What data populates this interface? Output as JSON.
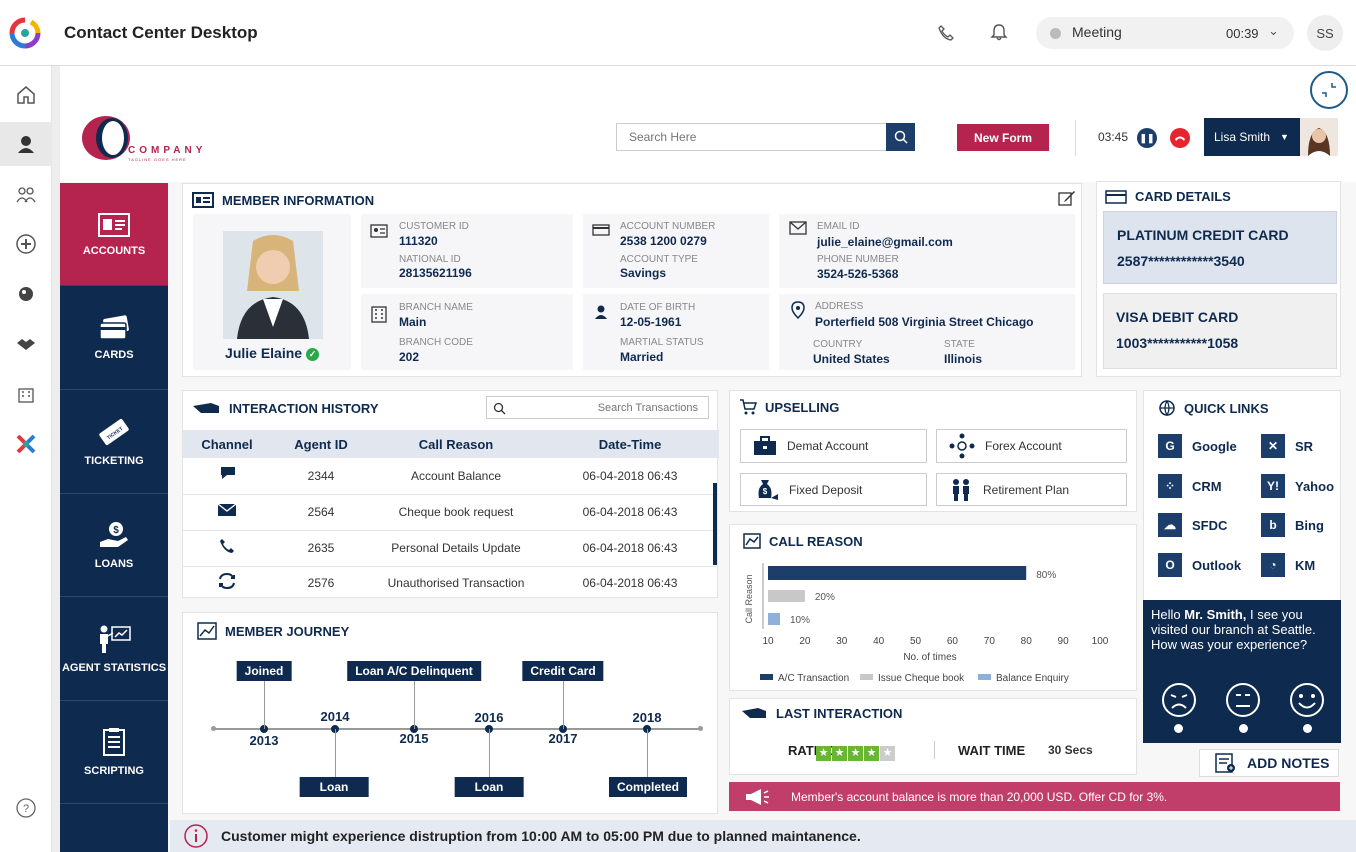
{
  "app": {
    "title": "Contact Center Desktop",
    "status": "Meeting",
    "timer": "00:39",
    "user_initials": "SS"
  },
  "company": {
    "name": "COMPANY",
    "tagline": "TAGLINE GOES HERE"
  },
  "toolbar": {
    "search_placeholder": "Search Here",
    "new_form": "New Form",
    "call_timer": "03:45",
    "agent_name": "Lisa Smith"
  },
  "nav": [
    {
      "label": "ACCOUNTS"
    },
    {
      "label": "CARDS"
    },
    {
      "label": "TICKETING"
    },
    {
      "label": "LOANS"
    },
    {
      "label": "AGENT STATISTICS"
    },
    {
      "label": "SCRIPTING"
    }
  ],
  "member": {
    "title": "MEMBER INFORMATION",
    "name": "Julie Elaine",
    "customer_id_label": "CUSTOMER ID",
    "customer_id": "111320",
    "national_id_label": "NATIONAL ID",
    "national_id": "28135621196",
    "account_number_label": "ACCOUNT NUMBER",
    "account_number": "2538 1200 0279",
    "account_type_label": "ACCOUNT TYPE",
    "account_type": "Savings",
    "email_label": "EMAIL ID",
    "email": "julie_elaine@gmail.com",
    "phone_label": "PHONE NUMBER",
    "phone": "3524-526-5368",
    "branch_name_label": "BRANCH NAME",
    "branch_name": "Main",
    "branch_code_label": "BRANCH CODE",
    "branch_code": "202",
    "dob_label": "DATE OF BIRTH",
    "dob": "12-05-1961",
    "marital_label": "MARTIAL STATUS",
    "marital": "Married",
    "address_label": "ADDRESS",
    "address": "Porterfield 508 Virginia Street Chicago",
    "country_label": "COUNTRY",
    "country": "United States",
    "state_label": "STATE",
    "state": "Illinois"
  },
  "cards": {
    "title": "CARD DETAILS",
    "items": [
      {
        "name": "PLATINUM CREDIT CARD",
        "number": "2587************3540"
      },
      {
        "name": "VISA DEBIT CARD",
        "number": "1003***********1058"
      }
    ]
  },
  "history": {
    "title": "INTERACTION HISTORY",
    "search_placeholder": "Search Transactions",
    "columns": [
      "Channel",
      "Agent ID",
      "Call Reason",
      "Date-Time"
    ],
    "rows": [
      {
        "channel_icon": "chat-icon",
        "agent": "2344",
        "reason": "Account Balance",
        "datetime": "06-04-2018 06:43"
      },
      {
        "channel_icon": "email-icon",
        "agent": "2564",
        "reason": "Cheque book request",
        "datetime": "06-04-2018 06:43"
      },
      {
        "channel_icon": "phone-icon",
        "agent": "2635",
        "reason": "Personal Details Update",
        "datetime": "06-04-2018 06:43"
      },
      {
        "channel_icon": "transfer-icon",
        "agent": "2576",
        "reason": "Unauthorised Transaction",
        "datetime": "06-04-2018 06:43"
      }
    ]
  },
  "upselling": {
    "title": "UPSELLING",
    "items": [
      "Demat Account",
      "Forex Account",
      "Fixed Deposit",
      "Retirement Plan"
    ]
  },
  "quick_links": {
    "title": "QUICK LINKS",
    "items": [
      "Google",
      "SR",
      "CRM",
      "Yahoo",
      "SFDC",
      "Bing",
      "Outlook",
      "KM"
    ]
  },
  "journey": {
    "title": "MEMBER JOURNEY",
    "years": [
      "2013",
      "2014",
      "2015",
      "2016",
      "2017",
      "2018"
    ],
    "top_events": [
      "Joined",
      "Loan A/C Delinquent",
      "Credit Card"
    ],
    "bottom_events": [
      "Loan",
      "Loan",
      "Completed"
    ]
  },
  "chart_data": {
    "type": "bar",
    "title": "CALL REASON",
    "ylabel": "Call Reason",
    "xlabel": "No. of times",
    "xlim": [
      10,
      100
    ],
    "xticks": [
      10,
      20,
      30,
      40,
      50,
      60,
      70,
      80,
      90,
      100
    ],
    "series": [
      {
        "name": "A/C Transaction",
        "value": 80,
        "label": "80%",
        "color": "#1d3d6b"
      },
      {
        "name": "Issue Cheque book",
        "value": 20,
        "label": "20%",
        "color": "#c8c8c8"
      },
      {
        "name": "Balance Enquiry",
        "value": 10,
        "label": "10%",
        "color": "#8fb0d8"
      }
    ]
  },
  "last_interaction": {
    "title": "LAST INTERACTION",
    "rating_label": "RATING",
    "rating": 4,
    "rating_max": 5,
    "wait_label": "WAIT TIME",
    "wait_value": "30 Secs"
  },
  "feedback": {
    "greeting": "Hello ",
    "name": "Mr. Smith,",
    "message": " I see you visited our branch at Seattle. How was your experience?"
  },
  "notes": {
    "label": "ADD NOTES"
  },
  "offer": {
    "text": "Member's account balance is more than 20,000 USD. Offer CD for 3%."
  },
  "alert": {
    "text": "Customer might experience distruption from 10:00 AM to 05:00 PM due to planned maintanence."
  },
  "colors": {
    "navy": "#0f2a4f",
    "crimson": "#b5234f",
    "green": "#6bb534"
  }
}
